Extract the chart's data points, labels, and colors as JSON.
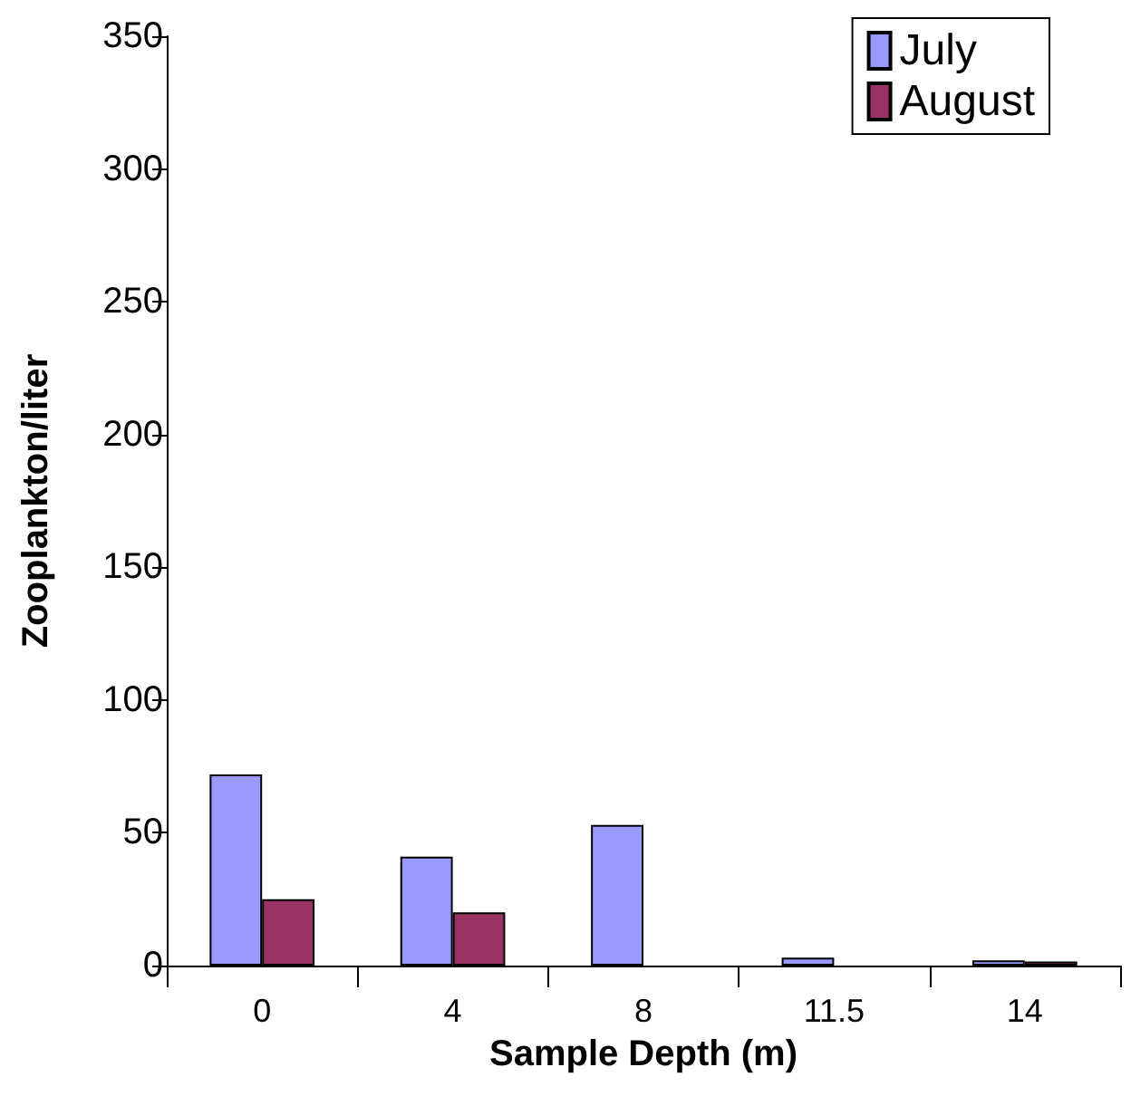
{
  "chart_data": {
    "type": "bar",
    "xlabel": "Sample Depth (m)",
    "ylabel": "Zooplankton/liter",
    "categories": [
      "0",
      "4",
      "8",
      "11.5",
      "14"
    ],
    "series": [
      {
        "name": "July",
        "color": "#9999ff",
        "values": [
          72,
          41,
          53,
          3,
          2
        ]
      },
      {
        "name": "August",
        "color": "#993366",
        "values": [
          25,
          20,
          null,
          null,
          1.5
        ]
      }
    ],
    "ylim": [
      0,
      350
    ],
    "yticks": [
      0,
      50,
      100,
      150,
      200,
      250,
      300,
      350
    ],
    "grid": false,
    "legend": "top right"
  }
}
